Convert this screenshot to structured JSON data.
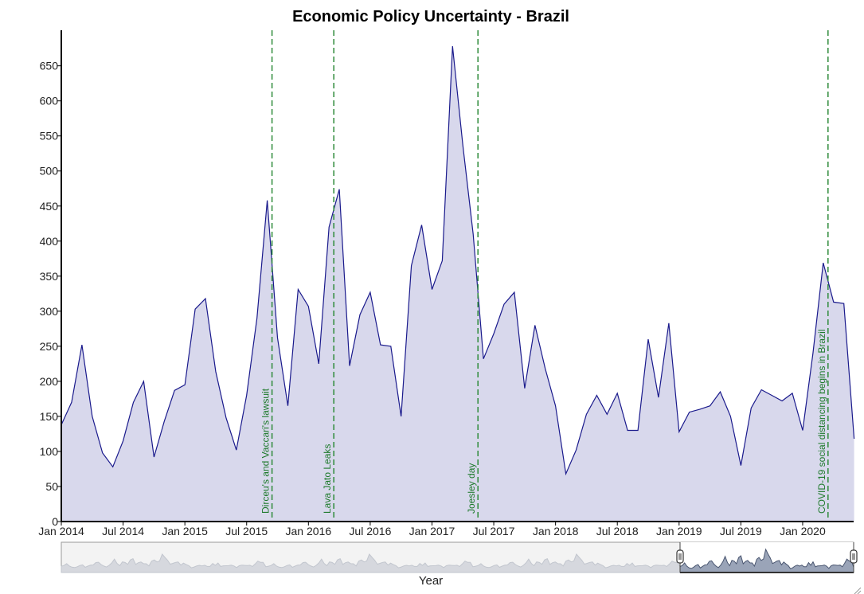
{
  "chart_data": {
    "type": "area",
    "title": "Economic Policy Uncertainty - Brazil",
    "xlabel": "Year",
    "ylabel": "",
    "ylim": [
      0,
      700
    ],
    "y_ticks": [
      0,
      50,
      100,
      150,
      200,
      250,
      300,
      350,
      400,
      450,
      500,
      550,
      600,
      650
    ],
    "x_range": [
      "2014-01",
      "2020-06"
    ],
    "x_ticks": [
      {
        "month": "2014-01",
        "label": "Jan 2014"
      },
      {
        "month": "2014-07",
        "label": "Jul 2014"
      },
      {
        "month": "2015-01",
        "label": "Jan 2015"
      },
      {
        "month": "2015-07",
        "label": "Jul 2015"
      },
      {
        "month": "2016-01",
        "label": "Jan 2016"
      },
      {
        "month": "2016-07",
        "label": "Jul 2016"
      },
      {
        "month": "2017-01",
        "label": "Jan 2017"
      },
      {
        "month": "2017-07",
        "label": "Jul 2017"
      },
      {
        "month": "2018-01",
        "label": "Jan 2018"
      },
      {
        "month": "2018-07",
        "label": "Jul 2018"
      },
      {
        "month": "2019-01",
        "label": "Jan 2019"
      },
      {
        "month": "2019-07",
        "label": "Jul 2019"
      },
      {
        "month": "2020-01",
        "label": "Jan 2020"
      }
    ],
    "line_color": "#1a1a8c",
    "fill_color": "#d8d8ec",
    "event_color": "#2e8b3a",
    "grid": false,
    "series": [
      {
        "x": [
          "2014-01",
          "2014-02",
          "2014-03",
          "2014-04",
          "2014-05",
          "2014-06",
          "2014-07",
          "2014-08",
          "2014-09",
          "2014-10",
          "2014-11",
          "2014-12",
          "2015-01",
          "2015-02",
          "2015-03",
          "2015-04",
          "2015-05",
          "2015-06",
          "2015-07",
          "2015-08",
          "2015-09",
          "2015-10",
          "2015-11",
          "2015-12",
          "2016-01",
          "2016-02",
          "2016-03",
          "2016-04",
          "2016-05",
          "2016-06",
          "2016-07",
          "2016-08",
          "2016-09",
          "2016-10",
          "2016-11",
          "2016-12",
          "2017-01",
          "2017-02",
          "2017-03",
          "2017-04",
          "2017-05",
          "2017-06",
          "2017-07",
          "2017-08",
          "2017-09",
          "2017-10",
          "2017-11",
          "2017-12",
          "2018-01",
          "2018-02",
          "2018-03",
          "2018-04",
          "2018-05",
          "2018-06",
          "2018-07",
          "2018-08",
          "2018-09",
          "2018-10",
          "2018-11",
          "2018-12",
          "2019-01",
          "2019-02",
          "2019-03",
          "2019-04",
          "2019-05",
          "2019-06",
          "2019-07",
          "2019-08",
          "2019-09",
          "2019-10",
          "2019-11",
          "2019-12",
          "2020-01",
          "2020-02",
          "2020-03",
          "2020-04",
          "2020-05",
          "2020-06"
        ],
        "values": [
          138,
          170,
          252,
          150,
          98,
          78,
          115,
          170,
          200,
          92,
          143,
          187,
          195,
          303,
          318,
          214,
          148,
          102,
          180,
          290,
          458,
          262,
          165,
          331,
          307,
          225,
          420,
          474,
          222,
          295,
          327,
          252,
          250,
          150,
          365,
          423,
          331,
          372,
          678,
          536,
          410,
          232,
          268,
          310,
          327,
          190,
          280,
          218,
          165,
          68,
          102,
          153,
          180,
          153,
          183,
          130,
          130,
          260,
          177,
          283,
          128,
          156,
          160,
          165,
          185,
          150,
          80,
          162,
          188,
          180,
          172,
          183,
          130,
          240,
          369,
          313,
          311,
          118
        ]
      }
    ],
    "events": [
      {
        "month": "2015-09",
        "label": "Dirceu's and Vaccari's lawsuit"
      },
      {
        "month": "2016-03",
        "label": "Lava Jato Leaks"
      },
      {
        "month": "2017-05",
        "label": "Joesley day"
      },
      {
        "month": "2020-03",
        "label": "COVID-19 social distancing begins in Brazil"
      }
    ]
  }
}
